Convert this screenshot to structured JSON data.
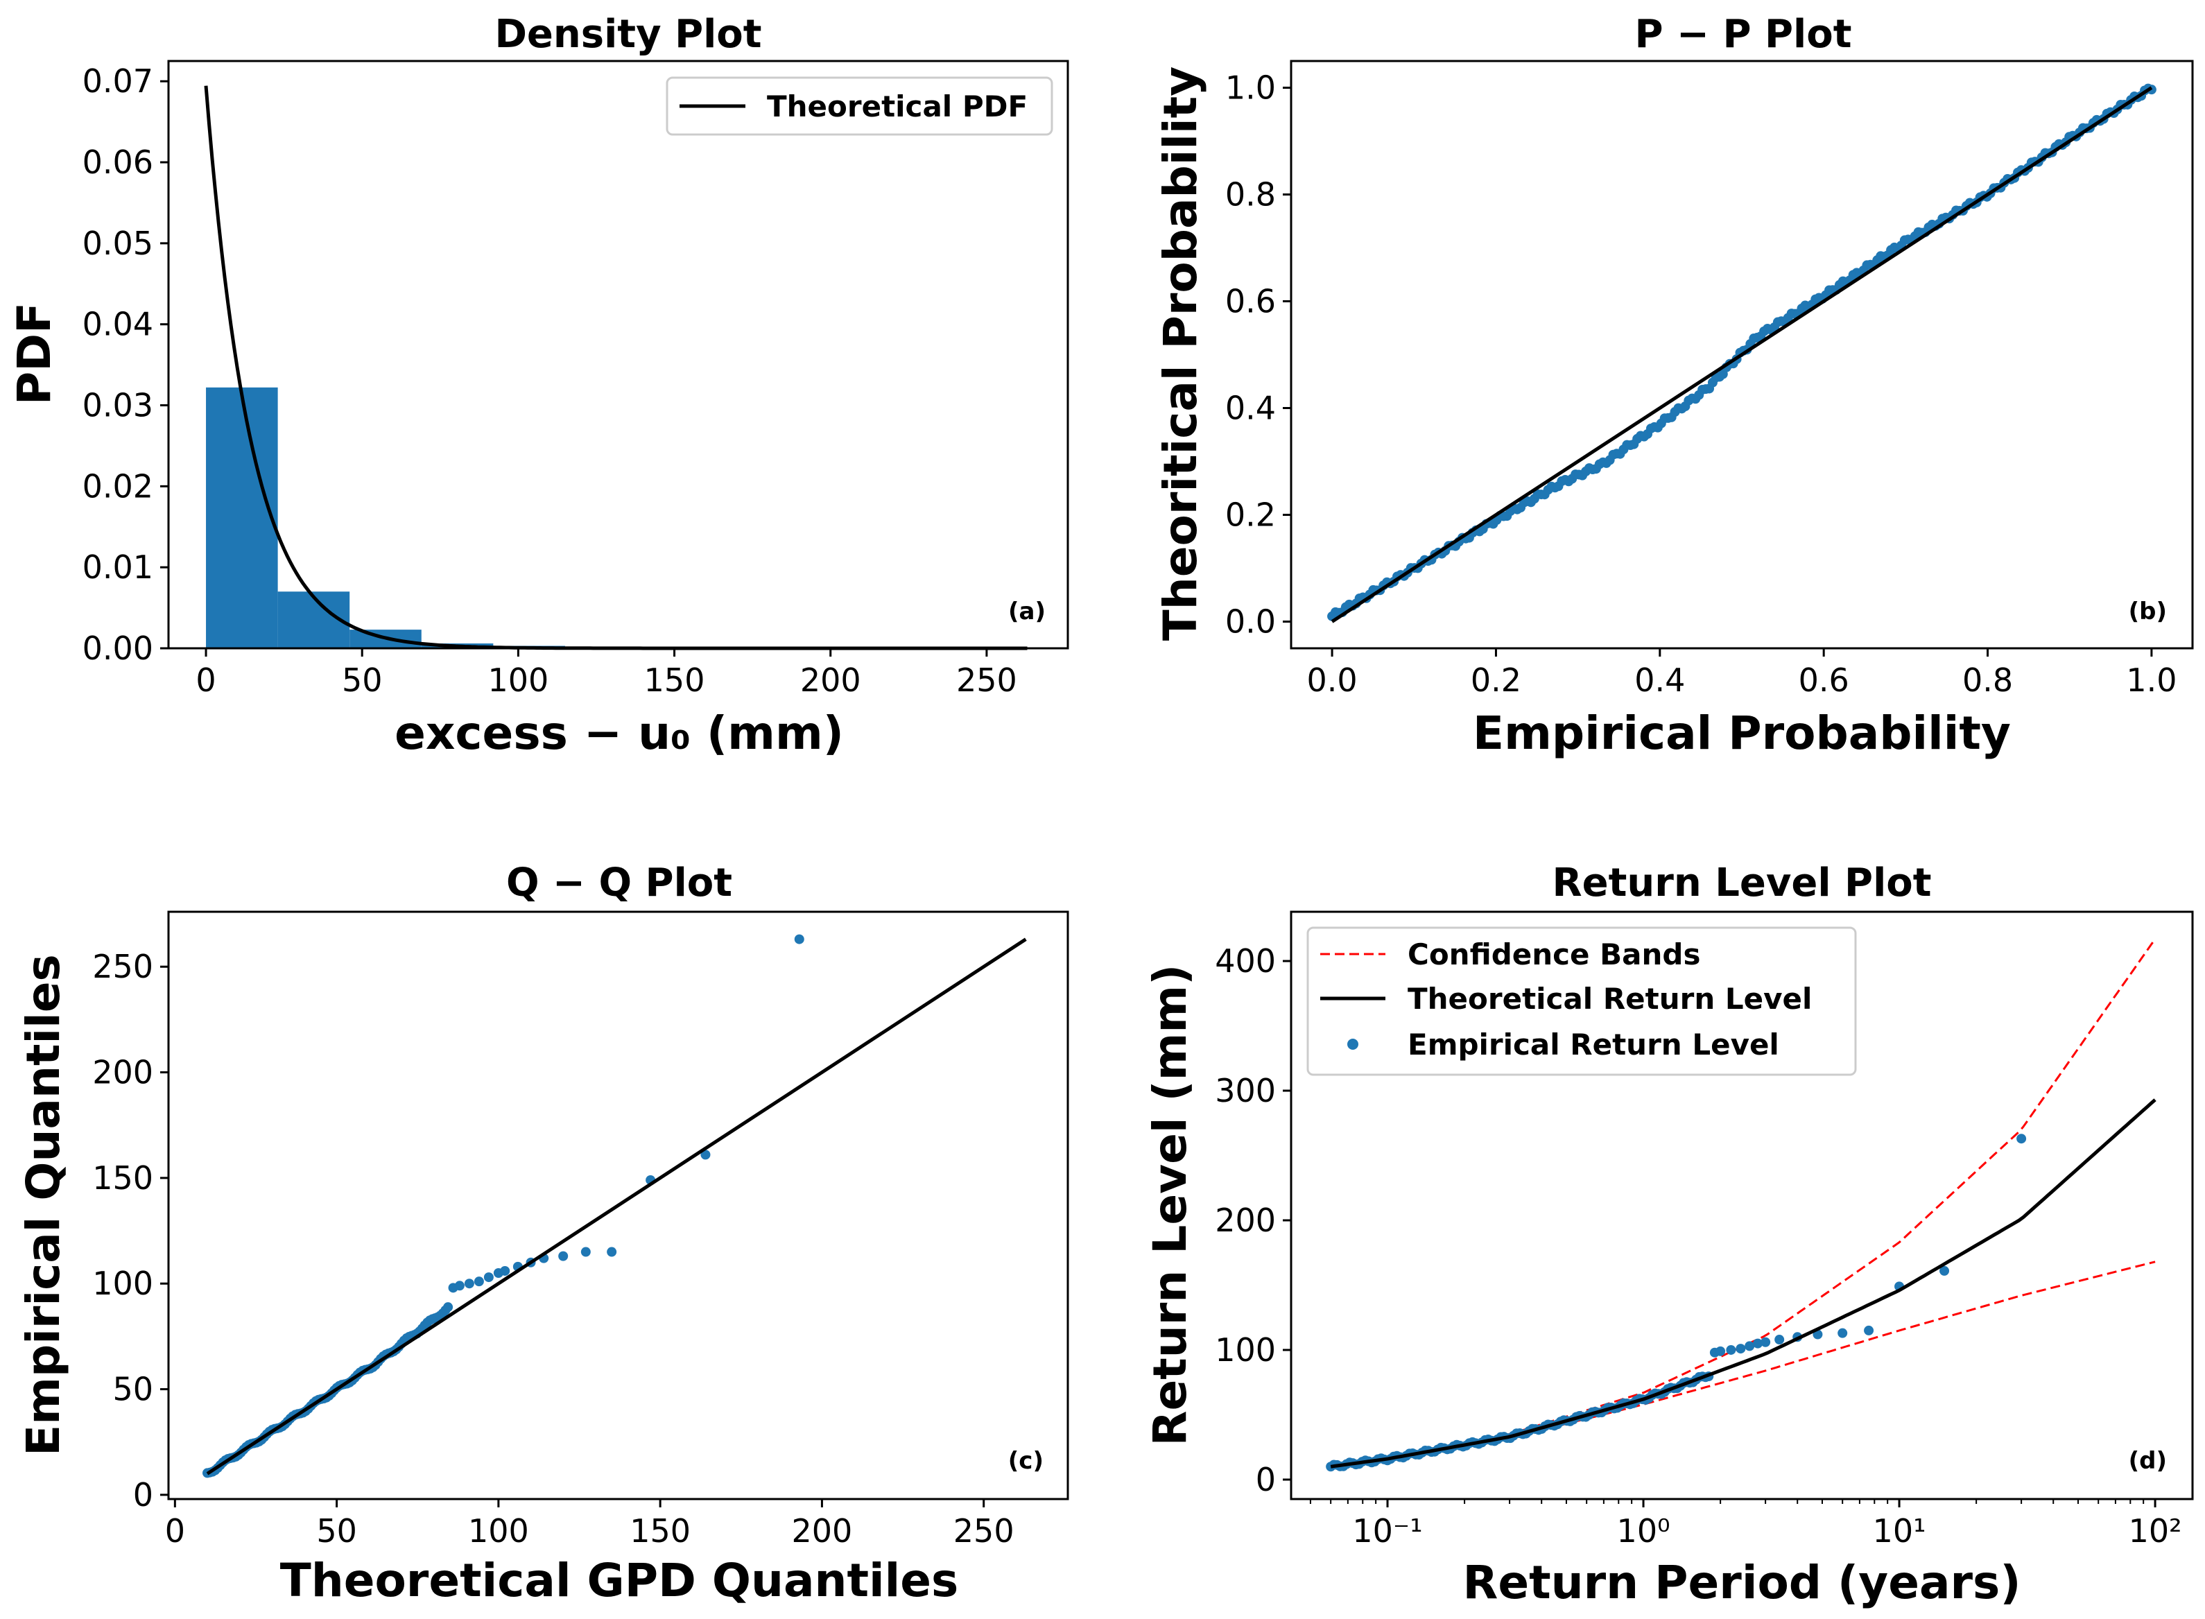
{
  "chart_data": [
    {
      "type": "bar",
      "panel": "(a)",
      "title": "Density Plot",
      "xlabel": "excess − u₀ (mm)",
      "ylabel": "PDF",
      "xlim": [
        -12,
        276
      ],
      "ylim": [
        0,
        0.0725
      ],
      "xticks": [
        "0",
        "50",
        "100",
        "150",
        "200",
        "250"
      ],
      "yticks": [
        "0.00",
        "0.01",
        "0.02",
        "0.03",
        "0.04",
        "0.05",
        "0.06",
        "0.07"
      ],
      "histogram": {
        "bin_edges": [
          0,
          23,
          46,
          69,
          92,
          115,
          138,
          161,
          184,
          207,
          230,
          253,
          263
        ],
        "values": [
          0.0322,
          0.007,
          0.0023,
          0.0006,
          0.0003,
          0.0001,
          5e-05,
          3e-05,
          2e-05,
          1e-05,
          1e-05,
          1e-05
        ],
        "color": "#1f77b4"
      },
      "pdf_curve": {
        "name": "Theoretical PDF",
        "scale": 14.4,
        "x_max": 263,
        "color": "#000000"
      },
      "legend": {
        "position": "top-right",
        "entries": [
          "Theoretical PDF"
        ]
      }
    },
    {
      "type": "scatter",
      "panel": "(b)",
      "title": "P − P Plot",
      "xlabel": "Empirical Probability",
      "ylabel": "Theoritical Probability",
      "xlim": [
        -0.05,
        1.05
      ],
      "ylim": [
        -0.05,
        1.05
      ],
      "xticks": [
        "0.0",
        "0.2",
        "0.4",
        "0.6",
        "0.8",
        "1.0"
      ],
      "yticks": [
        "0.0",
        "0.2",
        "0.4",
        "0.6",
        "0.8",
        "1.0"
      ],
      "reference_line": [
        [
          0,
          0
        ],
        [
          1,
          1
        ]
      ],
      "point_count": 240,
      "deviation_profile": {
        "x": [
          0,
          0.1,
          0.2,
          0.28,
          0.33,
          0.4,
          0.46,
          0.52,
          0.6,
          0.7,
          0.8,
          0.9,
          1.0
        ],
        "dy": [
          0.01,
          0.0,
          -0.01,
          -0.02,
          -0.035,
          -0.03,
          -0.02,
          0.015,
          0.01,
          0.012,
          0.0,
          0.005,
          0.0
        ]
      },
      "color": "#1f77b4"
    },
    {
      "type": "scatter",
      "panel": "(c)",
      "title": "Q − Q Plot",
      "xlabel": "Theoretical GPD Quantiles",
      "ylabel": "Empirical Quantiles",
      "xlim": [
        -2,
        276
      ],
      "ylim": [
        -2,
        276
      ],
      "xticks": [
        "0",
        "50",
        "100",
        "150",
        "200",
        "250"
      ],
      "yticks": [
        "0",
        "50",
        "100",
        "150",
        "200",
        "250"
      ],
      "reference_line": [
        [
          10,
          10
        ],
        [
          263,
          263
        ]
      ],
      "points": [
        [
          86,
          98
        ],
        [
          88,
          99
        ],
        [
          91,
          100
        ],
        [
          94,
          101
        ],
        [
          97,
          103
        ],
        [
          100,
          105
        ],
        [
          102,
          106
        ],
        [
          106,
          108
        ],
        [
          110,
          110
        ],
        [
          114,
          112
        ],
        [
          120,
          113
        ],
        [
          127,
          115
        ],
        [
          135,
          115
        ],
        [
          147,
          149
        ],
        [
          164,
          161
        ],
        [
          193,
          263
        ]
      ],
      "dense_range": [
        10,
        85
      ],
      "color": "#1f77b4"
    },
    {
      "type": "line",
      "panel": "(d)",
      "title": "Return Level Plot",
      "xlabel": "Return Period (years)",
      "ylabel": "Return Level (mm)",
      "xscale": "log",
      "xlim": [
        0.042,
        140
      ],
      "ylim": [
        -15,
        438
      ],
      "xticks": [
        "10⁻¹",
        "10⁰",
        "10¹",
        "10²"
      ],
      "yticks": [
        "0",
        "100",
        "200",
        "300",
        "400"
      ],
      "series": [
        {
          "name": "Confidence Bands",
          "style": "dashed",
          "color": "#ff0000",
          "x": [
            0.06,
            0.1,
            0.3,
            1,
            3,
            10,
            30,
            100
          ],
          "upper": [
            11,
            17,
            35,
            67,
            111,
            183,
            270,
            417
          ],
          "lower": [
            10,
            16,
            32,
            58,
            84,
            115,
            142,
            168
          ]
        },
        {
          "name": "Theoretical Return Level",
          "style": "solid",
          "color": "#000000",
          "x": [
            0.06,
            0.1,
            0.3,
            1,
            3,
            10,
            30,
            100
          ],
          "y": [
            10,
            16,
            33,
            62,
            97,
            146,
            201,
            293
          ]
        },
        {
          "name": "Empirical Return Level",
          "style": "points",
          "color": "#1f77b4",
          "x": [
            1.9,
            2.0,
            2.2,
            2.4,
            2.6,
            2.8,
            3.0,
            3.4,
            4.0,
            4.8,
            6.0,
            7.6,
            10.0,
            15.0,
            30.0
          ],
          "y": [
            98,
            99,
            100,
            101,
            103,
            105,
            106,
            108,
            110,
            112,
            113,
            115,
            149,
            161,
            263
          ]
        }
      ],
      "legend": {
        "position": "top-left",
        "entries": [
          "Confidence Bands",
          "Theoretical Return Level",
          "Empirical Return Level"
        ]
      }
    }
  ]
}
